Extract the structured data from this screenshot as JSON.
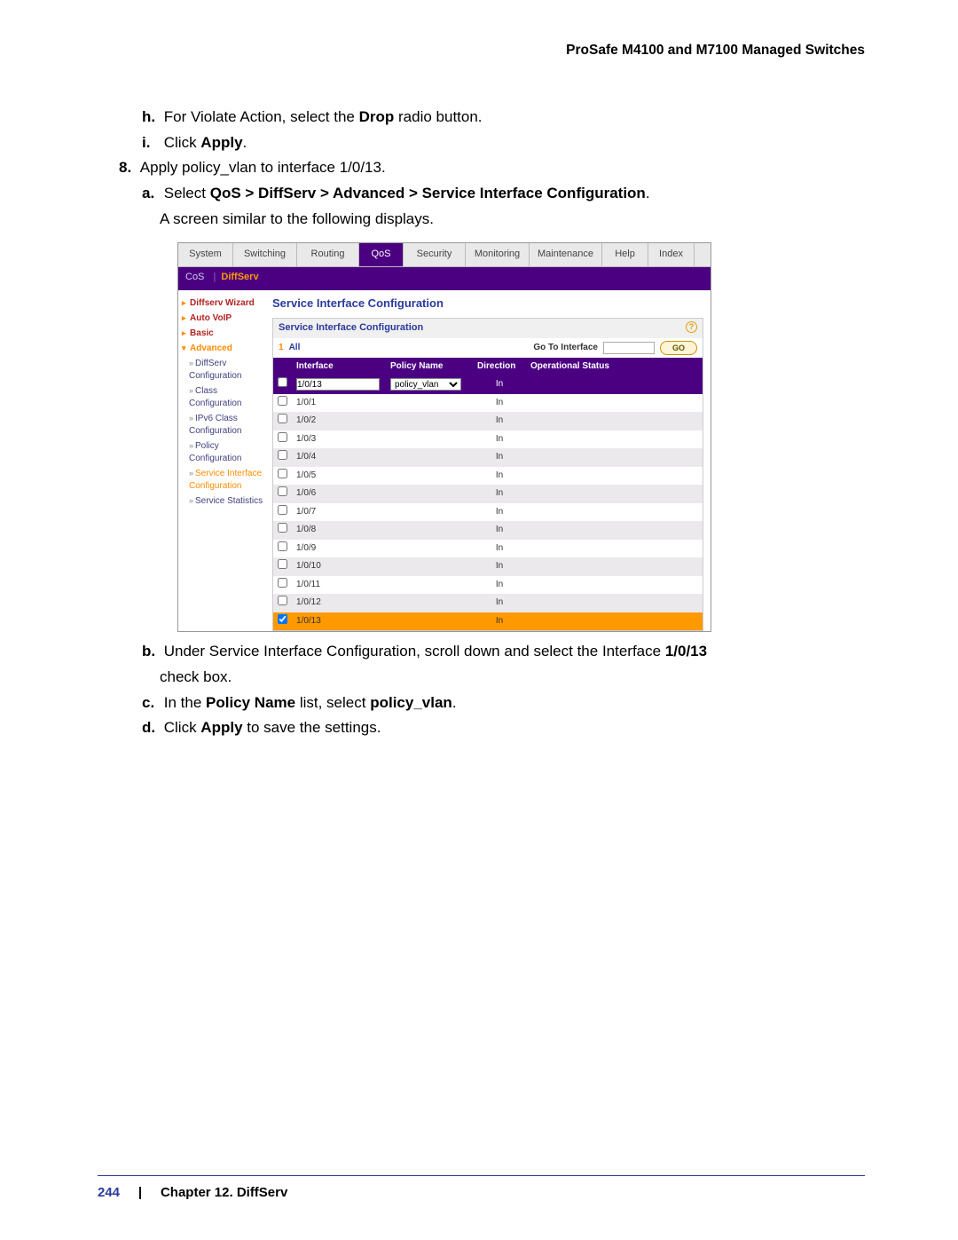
{
  "header_title": "ProSafe M4100 and M7100 Managed Switches",
  "steps": {
    "h_label": "h.",
    "h_text_1": "For Violate Action, select the ",
    "h_bold": "Drop",
    "h_text_2": " radio button.",
    "i_label": "i.",
    "i_text_1": "Click ",
    "i_bold": "Apply",
    "i_text_2": ".",
    "eight_label": "8.",
    "eight_text": "Apply policy_vlan to interface 1/0/13.",
    "a_label": "a.",
    "a_text_1": "Select ",
    "a_bold": "QoS > DiffServ > Advanced > Service Interface Configuration",
    "a_text_2": ".",
    "a_text_3": "A screen similar to the following displays.",
    "b_label": "b.",
    "b_text_1": "Under Service Interface Configuration, scroll down and select the Interface ",
    "b_bold": "1/0/13",
    "b_text_2": " check box.",
    "c_label": "c.",
    "c_text_1": "In the ",
    "c_bold_1": "Policy Name",
    "c_text_2": " list, select ",
    "c_bold_2": "policy_vlan",
    "c_text_3": ".",
    "d_label": "d.",
    "d_text_1": "Click ",
    "d_bold": "Apply",
    "d_text_2": " to save the settings."
  },
  "tabs": {
    "items": [
      "System",
      "Switching",
      "Routing",
      "QoS",
      "Security",
      "Monitoring",
      "Maintenance",
      "Help",
      "Index"
    ],
    "widths": [
      62,
      72,
      70,
      50,
      70,
      72,
      82,
      52,
      52
    ],
    "active_index": 3
  },
  "subtabs": {
    "cos": "CoS",
    "diff": "DiffServ"
  },
  "sidebar": {
    "top": [
      "Diffserv Wizard",
      "Auto VoIP",
      "Basic",
      "Advanced"
    ],
    "active_top_index": 3,
    "subs": [
      "DiffServ Configuration",
      "Class Configuration",
      "IPv6 Class Configuration",
      "Policy Configuration",
      "Service Interface Configuration",
      "Service Statistics"
    ],
    "active_sub_index": 4
  },
  "panel": {
    "title": "Service Interface Configuration",
    "box_header": "Service Interface Configuration",
    "help_icon": "?",
    "page1": "1",
    "all": "All",
    "goto_label": "Go To Interface",
    "go_btn": "GO",
    "columns": [
      "",
      "Interface",
      "Policy Name",
      "Direction",
      "Operational Status"
    ],
    "edit_interface": "1/0/13",
    "edit_policy": "policy_vlan",
    "edit_direction": "In",
    "rows": [
      {
        "if": "1/0/1",
        "dir": "In"
      },
      {
        "if": "1/0/2",
        "dir": "In"
      },
      {
        "if": "1/0/3",
        "dir": "In"
      },
      {
        "if": "1/0/4",
        "dir": "In"
      },
      {
        "if": "1/0/5",
        "dir": "In"
      },
      {
        "if": "1/0/6",
        "dir": "In"
      },
      {
        "if": "1/0/7",
        "dir": "In"
      },
      {
        "if": "1/0/8",
        "dir": "In"
      },
      {
        "if": "1/0/9",
        "dir": "In"
      },
      {
        "if": "1/0/10",
        "dir": "In"
      },
      {
        "if": "1/0/11",
        "dir": "In"
      },
      {
        "if": "1/0/12",
        "dir": "In"
      },
      {
        "if": "1/0/13",
        "dir": "In",
        "checked": true,
        "highlight": true
      }
    ]
  },
  "footer": {
    "page": "244",
    "sep": "|",
    "chapter": "Chapter 12.  DiffServ"
  }
}
